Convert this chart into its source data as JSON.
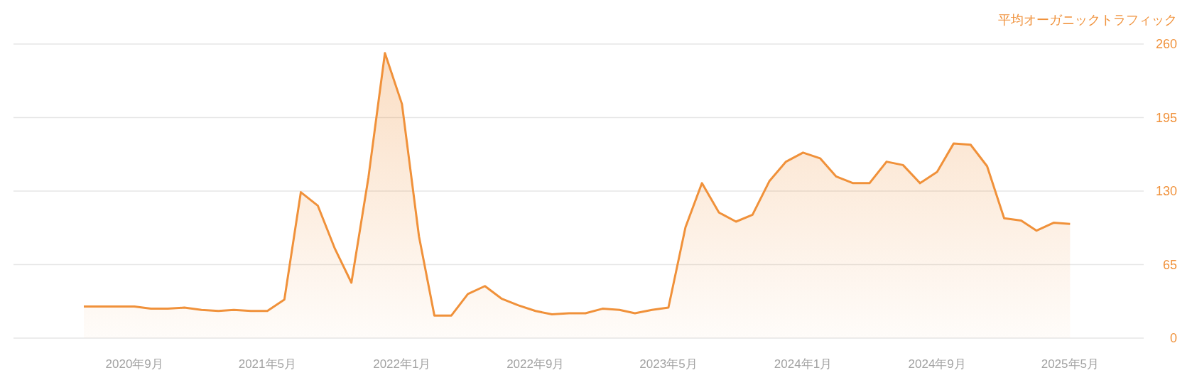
{
  "chart_data": {
    "type": "area",
    "ylabel": "平均オーガニックトラフィック",
    "x": [
      "2020-06",
      "2020-07",
      "2020-08",
      "2020-09",
      "2020-10",
      "2020-11",
      "2020-12",
      "2021-01",
      "2021-02",
      "2021-03",
      "2021-04",
      "2021-05",
      "2021-06",
      "2021-07",
      "2021-08",
      "2021-09",
      "2021-10",
      "2021-11",
      "2021-12",
      "2022-01",
      "2022-02",
      "2022-03",
      "2022-04",
      "2022-05",
      "2022-06",
      "2022-07",
      "2022-08",
      "2022-09",
      "2022-10",
      "2022-11",
      "2022-12",
      "2023-01",
      "2023-02",
      "2023-03",
      "2023-04",
      "2023-05",
      "2023-06",
      "2023-07",
      "2023-08",
      "2023-09",
      "2023-10",
      "2023-11",
      "2023-12",
      "2024-01",
      "2024-02",
      "2024-03",
      "2024-04",
      "2024-05",
      "2024-06",
      "2024-07",
      "2024-08",
      "2024-09",
      "2024-10",
      "2024-11",
      "2024-12",
      "2025-01",
      "2025-02",
      "2025-03",
      "2025-04",
      "2025-05"
    ],
    "series": [
      {
        "color": "#f0913a",
        "values": [
          28,
          28,
          28,
          28,
          26,
          26,
          27,
          25,
          24,
          25,
          24,
          24,
          34,
          129,
          117,
          79,
          49,
          142,
          252,
          207,
          90,
          20,
          20,
          39,
          46,
          35,
          29,
          24,
          21,
          22,
          22,
          26,
          25,
          22,
          25,
          27,
          98,
          137,
          111,
          103,
          109,
          139,
          156,
          164,
          159,
          143,
          137,
          137,
          156,
          153,
          137,
          147,
          172,
          171,
          152,
          106,
          104,
          95,
          102,
          101
        ]
      }
    ],
    "xlim": [
      "2020-01-25",
      "2025-09-12"
    ],
    "xticks": [
      {
        "value": "2020-09",
        "label": "2020年9月"
      },
      {
        "value": "2021-05",
        "label": "2021年5月"
      },
      {
        "value": "2022-01",
        "label": "2022年1月"
      },
      {
        "value": "2022-09",
        "label": "2022年9月"
      },
      {
        "value": "2023-05",
        "label": "2023年5月"
      },
      {
        "value": "2024-01",
        "label": "2024年1月"
      },
      {
        "value": "2024-09",
        "label": "2024年9月"
      },
      {
        "value": "2025-05",
        "label": "2025年5月"
      }
    ],
    "ylim": [
      0,
      260
    ],
    "yticks": [
      0,
      65,
      130,
      195,
      260
    ],
    "grid": "y"
  }
}
